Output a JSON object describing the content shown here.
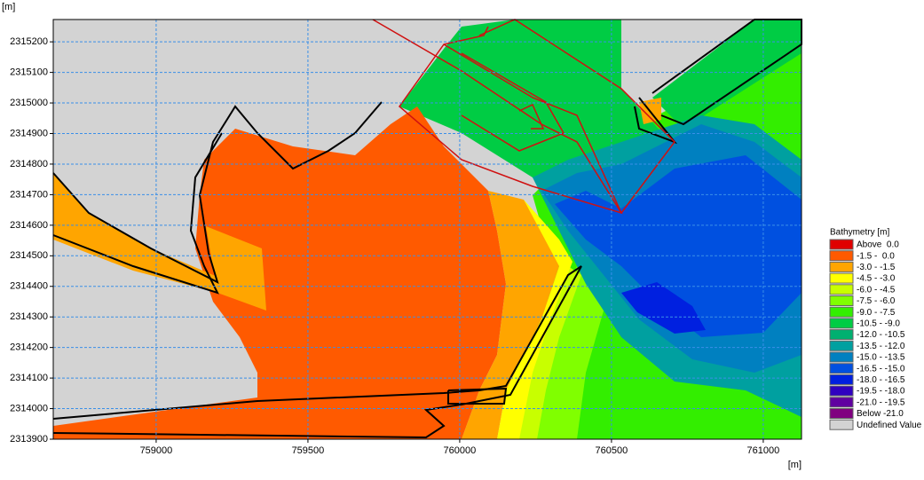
{
  "chart_data": {
    "type": "contour",
    "y_label": "[m]",
    "x_label": "[m]",
    "xlim": [
      758661,
      761126
    ],
    "ylim": [
      2313900,
      2315273
    ],
    "xticks": [
      759000,
      759500,
      760000,
      760500,
      761000
    ],
    "yticks": [
      2313900,
      2314000,
      2314100,
      2314200,
      2314300,
      2314400,
      2314500,
      2314600,
      2314700,
      2314800,
      2314900,
      2315000,
      2315100,
      2315200
    ],
    "grid": true,
    "legend": {
      "title": "Bathymetry [m]",
      "items": [
        {
          "label": "Above  0.0",
          "color": "#e00000"
        },
        {
          "label": "-1.5 -  0.0",
          "color": "#ff5a00"
        },
        {
          "label": "-3.0 - -1.5",
          "color": "#ffa500"
        },
        {
          "label": "-4.5 - -3.0",
          "color": "#ffff00"
        },
        {
          "label": "-6.0 - -4.5",
          "color": "#c8ff00"
        },
        {
          "label": "-7.5 - -6.0",
          "color": "#80ff00"
        },
        {
          "label": "-9.0 - -7.5",
          "color": "#33ee00"
        },
        {
          "label": "-10.5 - -9.0",
          "color": "#00cc44"
        },
        {
          "label": "-12.0 - -10.5",
          "color": "#00b070"
        },
        {
          "label": "-13.5 - -12.0",
          "color": "#00a0a0"
        },
        {
          "label": "-15.0 - -13.5",
          "color": "#0080c0"
        },
        {
          "label": "-16.5 - -15.0",
          "color": "#0050e0"
        },
        {
          "label": "-18.0 - -16.5",
          "color": "#0020e0"
        },
        {
          "label": "-19.5 - -18.0",
          "color": "#3000c0"
        },
        {
          "label": "-21.0 - -19.5",
          "color": "#6000a0"
        },
        {
          "label": "Below -21.0",
          "color": "#800080"
        },
        {
          "label": "Undefined Value",
          "color": "#d3d3d3"
        }
      ]
    }
  }
}
